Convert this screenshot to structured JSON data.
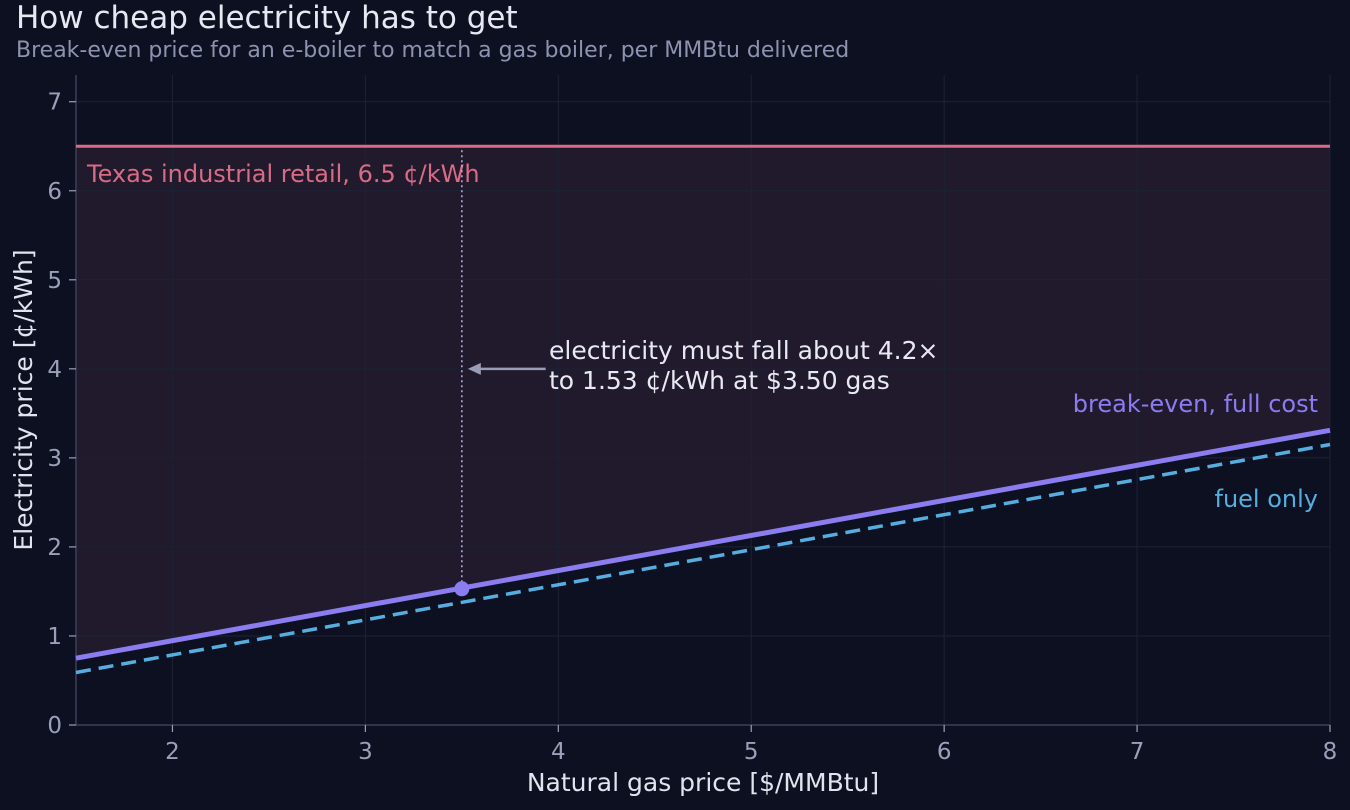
{
  "chart_data": {
    "type": "line",
    "title": "How cheap electricity has to get",
    "subtitle": "Break-even price for an e-boiler to match a gas boiler, per MMBtu delivered",
    "xlabel": "Natural gas price  [$/MMBtu]",
    "ylabel": "Electricity price  [¢/kWh]",
    "xlim": [
      1.5,
      8
    ],
    "ylim": [
      0,
      7.3
    ],
    "xticks": [
      2,
      3,
      4,
      5,
      6,
      7,
      8
    ],
    "yticks": [
      0,
      1,
      2,
      3,
      4,
      5,
      6,
      7
    ],
    "grid": true,
    "series": [
      {
        "name": "break-even, full cost",
        "x": [
          1.5,
          8
        ],
        "y": [
          0.75,
          3.31
        ],
        "color": "#8b7cf0",
        "style": "solid"
      },
      {
        "name": "fuel only",
        "x": [
          1.5,
          8
        ],
        "y": [
          0.59,
          3.15
        ],
        "color": "#56aee0",
        "style": "dashed"
      }
    ],
    "reference_line": {
      "label": "Texas industrial retail, 6.5 ¢/kWh",
      "y": 6.5,
      "color": "#d96b85"
    },
    "highlight_point": {
      "x": 3.5,
      "y": 1.53
    },
    "annotation": {
      "lines": [
        "electricity must fall about 4.2×",
        "to 1.53 ¢/kWh at $3.50 gas"
      ],
      "arrow_target": [
        3.5,
        4.0
      ],
      "text_anchor": [
        3.95,
        4.0
      ]
    }
  },
  "colors": {
    "background": "#0d1020",
    "shade": "#211a2d",
    "grid": "#1d2236",
    "axis": "#3b405a",
    "tick_text": "#9aa0ba",
    "annotation_arrow": "#9a9cb6",
    "marker_line": "#b2a9d6"
  }
}
